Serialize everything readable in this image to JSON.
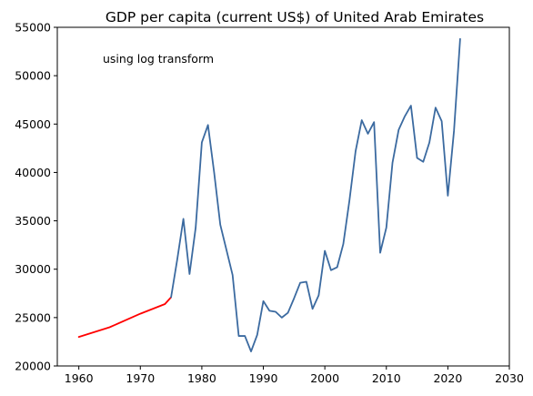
{
  "chart_data": {
    "type": "line",
    "title": "GDP per capita (current US$) of United Arab Emirates",
    "annotation": "using log transform",
    "xlabel": "",
    "ylabel": "",
    "xlim": [
      1956.5,
      2030
    ],
    "ylim": [
      20000,
      55000
    ],
    "x_ticks": [
      1960,
      1970,
      1980,
      1990,
      2000,
      2010,
      2020,
      2030
    ],
    "y_ticks": [
      20000,
      25000,
      30000,
      35000,
      40000,
      45000,
      50000,
      55000
    ],
    "grid": false,
    "series": [
      {
        "color": "#ff0000",
        "points": [
          [
            1960,
            23000
          ],
          [
            1965,
            24000
          ],
          [
            1970,
            25400
          ],
          [
            1974,
            26400
          ],
          [
            1975,
            27100
          ]
        ]
      },
      {
        "color": "#3b6aa0",
        "points": [
          [
            1975,
            27100
          ],
          [
            1976,
            31000
          ],
          [
            1977,
            35200
          ],
          [
            1978,
            29500
          ],
          [
            1979,
            34300
          ],
          [
            1980,
            43100
          ],
          [
            1981,
            44900
          ],
          [
            1982,
            40000
          ],
          [
            1983,
            34600
          ],
          [
            1984,
            32000
          ],
          [
            1985,
            29400
          ],
          [
            1986,
            23100
          ],
          [
            1987,
            23100
          ],
          [
            1988,
            21500
          ],
          [
            1989,
            23200
          ],
          [
            1990,
            26700
          ],
          [
            1991,
            25700
          ],
          [
            1992,
            25600
          ],
          [
            1993,
            25000
          ],
          [
            1994,
            25500
          ],
          [
            1995,
            27000
          ],
          [
            1996,
            28600
          ],
          [
            1997,
            28700
          ],
          [
            1998,
            25900
          ],
          [
            1999,
            27300
          ],
          [
            2000,
            31900
          ],
          [
            2001,
            29900
          ],
          [
            2002,
            30200
          ],
          [
            2003,
            32600
          ],
          [
            2004,
            37100
          ],
          [
            2005,
            42200
          ],
          [
            2006,
            45400
          ],
          [
            2007,
            44000
          ],
          [
            2008,
            45200
          ],
          [
            2009,
            31700
          ],
          [
            2010,
            34300
          ],
          [
            2011,
            41000
          ],
          [
            2012,
            44400
          ],
          [
            2013,
            45800
          ],
          [
            2014,
            46900
          ],
          [
            2015,
            41500
          ],
          [
            2016,
            41100
          ],
          [
            2017,
            43100
          ],
          [
            2018,
            46700
          ],
          [
            2019,
            45300
          ],
          [
            2020,
            37600
          ],
          [
            2021,
            44300
          ],
          [
            2022,
            53800
          ]
        ]
      }
    ]
  }
}
